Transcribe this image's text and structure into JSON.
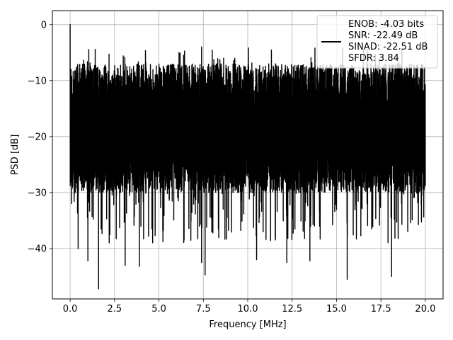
{
  "chart_data": {
    "type": "line",
    "title": "",
    "xlabel": "Frequency [MHz]",
    "ylabel": "PSD [dB]",
    "xlim": [
      -1.0,
      21.0
    ],
    "ylim": [
      -49.0,
      2.5
    ],
    "xticks": [
      0.0,
      2.5,
      5.0,
      7.5,
      10.0,
      12.5,
      15.0,
      17.5,
      20.0
    ],
    "xtick_labels": [
      "0.0",
      "2.5",
      "5.0",
      "7.5",
      "10.0",
      "12.5",
      "15.0",
      "17.5",
      "20.0"
    ],
    "yticks": [
      0,
      -10,
      -20,
      -30,
      -40
    ],
    "ytick_labels": [
      "0",
      "−10",
      "−20",
      "−30",
      "−40"
    ],
    "grid": true,
    "legend_position": "top-right",
    "series": [
      {
        "color": "#000000",
        "x_range": [
          0.0,
          20.0
        ],
        "noise_upper_range_db": [
          -16,
          -4
        ],
        "noise_lower_range_db": [
          -47,
          -22
        ],
        "notable_points": [
          {
            "x": 0.0,
            "y": 0.0
          },
          {
            "x": 0.05,
            "y": -8.0
          },
          {
            "x": 7.4,
            "y": -4.0
          },
          {
            "x": 1.6,
            "y": -47.2
          },
          {
            "x": 15.6,
            "y": -45.5
          },
          {
            "x": 18.1,
            "y": -45.0
          },
          {
            "x": 7.6,
            "y": -44.7
          },
          {
            "x": 7.4,
            "y": -42.5
          },
          {
            "x": 3.1,
            "y": -43.0
          },
          {
            "x": 3.9,
            "y": -43.2
          },
          {
            "x": 1.0,
            "y": -42.2
          },
          {
            "x": 12.2,
            "y": -42.5
          },
          {
            "x": 10.5,
            "y": -42.0
          },
          {
            "x": 13.5,
            "y": -42.2
          },
          {
            "x": 2.2,
            "y": -39.0
          },
          {
            "x": 0.45,
            "y": -40.0
          }
        ]
      }
    ],
    "legend": {
      "lines": [
        "ENOB: -4.03 bits",
        "SNR: -22.49 dB",
        "SINAD: -22.51 dB",
        "SFDR: 3.84"
      ]
    }
  }
}
